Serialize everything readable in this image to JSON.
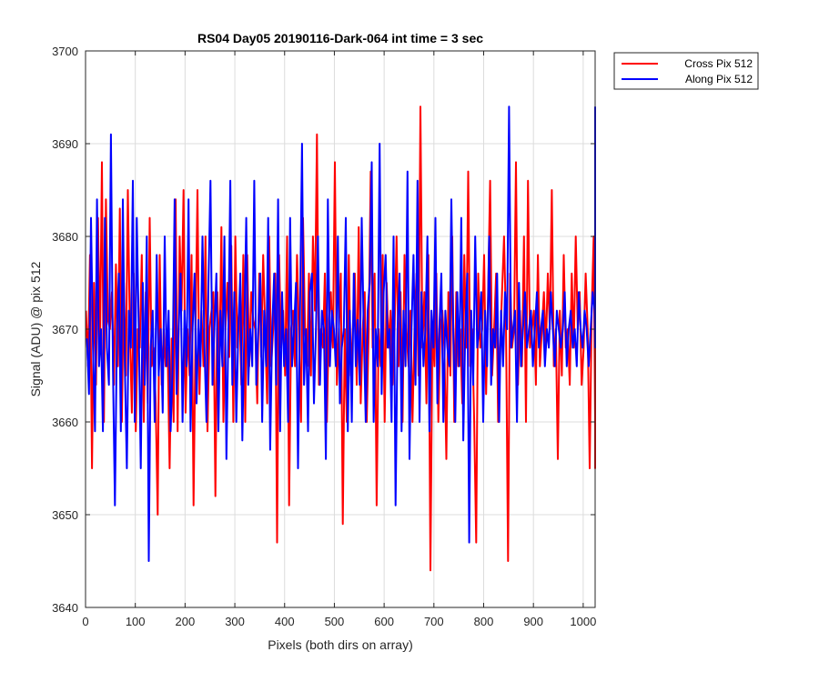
{
  "chart_data": {
    "type": "line",
    "title": "RS04 Day05 20190116-Dark-064 int time = 3 sec",
    "xlabel": "Pixels (both dirs on array)",
    "ylabel": "Signal (ADU) @ pix 512",
    "xlim": [
      0,
      1024
    ],
    "ylim": [
      3640,
      3700
    ],
    "x_ticks": [
      "0",
      "100",
      "200",
      "300",
      "400",
      "500",
      "600",
      "700",
      "800",
      "900",
      "1000"
    ],
    "y_ticks": [
      "3640",
      "3650",
      "3660",
      "3670",
      "3680",
      "3690",
      "3700"
    ],
    "grid": true,
    "legend_position": "outside-top-right",
    "series": [
      {
        "name": "Cross Pix 512",
        "color": "#ff0000",
        "x_start": 1,
        "x_step": 4,
        "values": [
          3672,
          3666,
          3678,
          3655,
          3675,
          3664,
          3682,
          3668,
          3688,
          3660,
          3684,
          3671,
          3670,
          3674,
          3664,
          3677,
          3666,
          3683,
          3660,
          3675,
          3665,
          3685,
          3670,
          3661,
          3676,
          3659,
          3670,
          3668,
          3678,
          3660,
          3674,
          3662,
          3682,
          3666,
          3668,
          3662,
          3650,
          3678,
          3664,
          3670,
          3666,
          3668,
          3655,
          3669,
          3660,
          3684,
          3659,
          3680,
          3672,
          3685,
          3661,
          3670,
          3665,
          3678,
          3651,
          3670,
          3685,
          3663,
          3672,
          3666,
          3680,
          3659,
          3670,
          3672,
          3674,
          3652,
          3674,
          3666,
          3681,
          3660,
          3670,
          3675,
          3667,
          3679,
          3660,
          3680,
          3668,
          3673,
          3664,
          3678,
          3660,
          3678,
          3666,
          3674,
          3671,
          3670,
          3662,
          3676,
          3667,
          3678,
          3670,
          3662,
          3680,
          3666,
          3670,
          3676,
          3647,
          3678,
          3668,
          3672,
          3665,
          3680,
          3651,
          3670,
          3672,
          3666,
          3678,
          3669,
          3660,
          3682,
          3670,
          3666,
          3676,
          3665,
          3680,
          3672,
          3691,
          3664,
          3670,
          3668,
          3676,
          3660,
          3671,
          3674,
          3668,
          3688,
          3664,
          3670,
          3676,
          3649,
          3670,
          3660,
          3678,
          3665,
          3670,
          3676,
          3664,
          3681,
          3662,
          3670,
          3674,
          3660,
          3670,
          3687,
          3668,
          3676,
          3651,
          3670,
          3666,
          3678,
          3660,
          3675,
          3668,
          3672,
          3664,
          3670,
          3680,
          3666,
          3674,
          3660,
          3678,
          3670,
          3666,
          3672,
          3660,
          3670,
          3676,
          3665,
          3694,
          3668,
          3674,
          3662,
          3678,
          3644,
          3670,
          3666,
          3676,
          3660,
          3670,
          3672,
          3668,
          3656,
          3674,
          3665,
          3680,
          3660,
          3674,
          3666,
          3670,
          3662,
          3678,
          3668,
          3687,
          3666,
          3670,
          3660,
          3647,
          3676,
          3668,
          3670,
          3678,
          3663,
          3674,
          3686,
          3665,
          3670,
          3676,
          3660,
          3668,
          3674,
          3680,
          3670,
          3645,
          3676,
          3668,
          3670,
          3688,
          3664,
          3672,
          3666,
          3680,
          3660,
          3686,
          3668,
          3670,
          3672,
          3664,
          3678,
          3666,
          3670,
          3674,
          3668,
          3676,
          3670,
          3685,
          3666,
          3670,
          3656,
          3672,
          3665,
          3678,
          3668,
          3670,
          3664,
          3676,
          3668,
          3680,
          3670,
          3674,
          3664,
          3668,
          3676,
          3670,
          3655,
          3672,
          3680,
          3660,
          3672,
          3684,
          3655,
          3670,
          3672,
          3666,
          3678
        ]
      },
      {
        "name": "Along Pix 512",
        "color": "#0000ff",
        "x_start": 3,
        "x_step": 4,
        "values": [
          3669,
          3663,
          3682,
          3668,
          3659,
          3684,
          3666,
          3670,
          3659,
          3682,
          3668,
          3664,
          3691,
          3666,
          3651,
          3670,
          3676,
          3659,
          3684,
          3666,
          3655,
          3672,
          3668,
          3686,
          3660,
          3682,
          3670,
          3655,
          3675,
          3664,
          3680,
          3645,
          3668,
          3672,
          3660,
          3678,
          3665,
          3670,
          3661,
          3680,
          3666,
          3672,
          3659,
          3666,
          3684,
          3663,
          3670,
          3676,
          3660,
          3672,
          3666,
          3684,
          3659,
          3670,
          3676,
          3662,
          3671,
          3666,
          3680,
          3668,
          3660,
          3675,
          3686,
          3664,
          3670,
          3676,
          3659,
          3672,
          3666,
          3680,
          3656,
          3670,
          3686,
          3664,
          3674,
          3660,
          3670,
          3676,
          3658,
          3670,
          3682,
          3664,
          3670,
          3666,
          3686,
          3664,
          3670,
          3676,
          3660,
          3672,
          3666,
          3682,
          3657,
          3670,
          3676,
          3664,
          3684,
          3659,
          3674,
          3666,
          3670,
          3660,
          3682,
          3666,
          3670,
          3675,
          3655,
          3672,
          3690,
          3664,
          3670,
          3659,
          3674,
          3676,
          3662,
          3670,
          3680,
          3664,
          3672,
          3670,
          3656,
          3684,
          3666,
          3672,
          3670,
          3666,
          3680,
          3662,
          3668,
          3670,
          3682,
          3659,
          3672,
          3660,
          3676,
          3666,
          3671,
          3664,
          3682,
          3670,
          3660,
          3672,
          3675,
          3688,
          3660,
          3670,
          3666,
          3690,
          3663,
          3674,
          3678,
          3668,
          3670,
          3660,
          3680,
          3651,
          3670,
          3676,
          3659,
          3672,
          3666,
          3687,
          3656,
          3670,
          3678,
          3664,
          3686,
          3660,
          3674,
          3666,
          3670,
          3680,
          3659,
          3672,
          3668,
          3682,
          3662,
          3670,
          3676,
          3660,
          3672,
          3668,
          3666,
          3684,
          3670,
          3660,
          3674,
          3666,
          3682,
          3658,
          3670,
          3676,
          3647,
          3672,
          3664,
          3680,
          3668,
          3670,
          3674,
          3660,
          3672,
          3666,
          3680,
          3664,
          3670,
          3668,
          3676,
          3660,
          3672,
          3666,
          3674,
          3670,
          3694,
          3668,
          3670,
          3672,
          3660,
          3675,
          3666,
          3670,
          3674,
          3668,
          3670,
          3672,
          3666,
          3670,
          3674,
          3668,
          3670,
          3672,
          3666,
          3670,
          3668,
          3674,
          3670,
          3666,
          3672,
          3670,
          3668,
          3670,
          3674,
          3666,
          3670,
          3672,
          3668,
          3670,
          3666,
          3674,
          3670,
          3668,
          3672,
          3670,
          3666,
          3670,
          3674,
          3672,
          3668,
          3694
        ]
      }
    ]
  }
}
